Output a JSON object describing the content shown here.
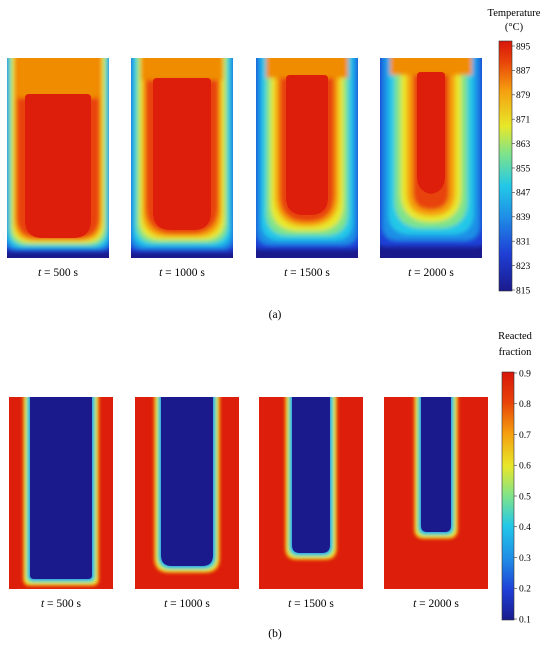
{
  "panel_a": {
    "label": "(a)",
    "colorbar": {
      "title_line1": "Temperature",
      "title_line2": "(°C)",
      "ticks": [
        "895",
        "887",
        "879",
        "871",
        "863",
        "855",
        "847",
        "839",
        "831",
        "823",
        "815"
      ]
    },
    "frames": [
      {
        "t_var": "t",
        "t_rest": " = 500 s"
      },
      {
        "t_var": "t",
        "t_rest": " = 1000 s"
      },
      {
        "t_var": "t",
        "t_rest": " = 1500 s"
      },
      {
        "t_var": "t",
        "t_rest": " = 2000 s"
      }
    ]
  },
  "panel_b": {
    "label": "(b)",
    "colorbar": {
      "title_line1": "Reacted",
      "title_line2": "fraction",
      "ticks": [
        "0.9",
        "0.8",
        "0.7",
        "0.6",
        "0.5",
        "0.4",
        "0.3",
        "0.2",
        "0.1"
      ]
    },
    "frames": [
      {
        "t_var": "t",
        "t_rest": " = 500 s"
      },
      {
        "t_var": "t",
        "t_rest": " = 1000 s"
      },
      {
        "t_var": "t",
        "t_rest": " = 1500 s"
      },
      {
        "t_var": "t",
        "t_rest": " = 2000 s"
      }
    ]
  },
  "colors": {
    "jet": [
      "#00007f",
      "#0000ff",
      "#007fff",
      "#00ffff",
      "#7fff7f",
      "#ffff00",
      "#ff7f00",
      "#ff0000",
      "#7f0000"
    ],
    "hot_red": "#dc1e0a",
    "cap_orange": "#f08c00",
    "deep_blue": "#1a1a8c"
  }
}
